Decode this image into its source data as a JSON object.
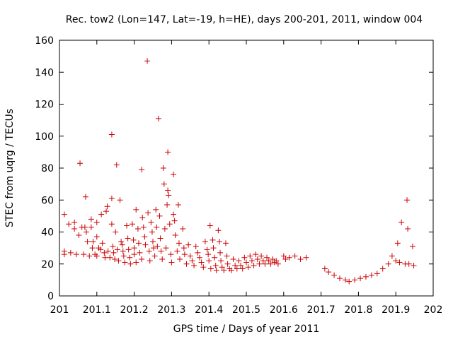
{
  "chart_data": {
    "type": "scatter",
    "title": "Rec. tow2 (Lon=147, Lat=-19, h=HE), days 200-201, 2011, window 004",
    "xlabel": "GPS time / Days of year 2011",
    "ylabel": "STEC from uqrg / TECUs",
    "xlim": [
      201,
      202
    ],
    "ylim": [
      0,
      160
    ],
    "xticks": [
      201,
      201.1,
      201.2,
      201.3,
      201.4,
      201.5,
      201.6,
      201.7,
      201.8,
      201.9,
      202
    ],
    "xtick_labels": [
      "201",
      "201.1",
      "201.2",
      "201.3",
      "201.4",
      "201.5",
      "201.6",
      "201.7",
      "201.8",
      "201.9",
      "202"
    ],
    "yticks": [
      0,
      20,
      40,
      60,
      80,
      100,
      120,
      140,
      160
    ],
    "ytick_labels": [
      "0",
      "20",
      "40",
      "60",
      "80",
      "100",
      "120",
      "140",
      "160"
    ],
    "marker": "+",
    "color": "#cc0000",
    "grid": false,
    "points": [
      [
        201.013,
        51
      ],
      [
        201.013,
        28
      ],
      [
        201.013,
        26
      ],
      [
        201.025,
        45
      ],
      [
        201.03,
        27
      ],
      [
        201.04,
        46
      ],
      [
        201.04,
        42
      ],
      [
        201.045,
        26
      ],
      [
        201.052,
        38
      ],
      [
        201.055,
        83
      ],
      [
        201.06,
        43
      ],
      [
        201.065,
        26
      ],
      [
        201.068,
        43
      ],
      [
        201.07,
        62
      ],
      [
        201.072,
        40
      ],
      [
        201.075,
        34
      ],
      [
        201.08,
        25
      ],
      [
        201.085,
        48
      ],
      [
        201.085,
        43
      ],
      [
        201.088,
        30
      ],
      [
        201.09,
        34
      ],
      [
        201.095,
        26
      ],
      [
        201.1,
        46
      ],
      [
        201.1,
        37
      ],
      [
        201.1,
        25
      ],
      [
        201.105,
        30
      ],
      [
        201.11,
        29
      ],
      [
        201.112,
        51
      ],
      [
        201.115,
        33
      ],
      [
        201.12,
        27
      ],
      [
        201.122,
        24
      ],
      [
        201.125,
        53
      ],
      [
        201.128,
        56
      ],
      [
        201.13,
        28
      ],
      [
        201.135,
        24
      ],
      [
        201.14,
        101
      ],
      [
        201.14,
        61
      ],
      [
        201.14,
        45
      ],
      [
        201.143,
        31
      ],
      [
        201.145,
        27
      ],
      [
        201.148,
        23
      ],
      [
        201.15,
        40
      ],
      [
        201.153,
        82
      ],
      [
        201.155,
        29
      ],
      [
        201.158,
        22
      ],
      [
        201.162,
        60
      ],
      [
        201.165,
        34
      ],
      [
        201.168,
        32
      ],
      [
        201.17,
        28
      ],
      [
        201.172,
        25
      ],
      [
        201.175,
        21
      ],
      [
        201.18,
        44
      ],
      [
        201.183,
        36
      ],
      [
        201.185,
        29
      ],
      [
        201.188,
        24
      ],
      [
        201.19,
        20
      ],
      [
        201.195,
        45
      ],
      [
        201.198,
        35
      ],
      [
        201.2,
        30
      ],
      [
        201.2,
        26
      ],
      [
        201.205,
        21
      ],
      [
        201.205,
        54
      ],
      [
        201.21,
        42
      ],
      [
        201.212,
        33
      ],
      [
        201.215,
        27
      ],
      [
        201.22,
        79
      ],
      [
        201.22,
        23
      ],
      [
        201.222,
        49
      ],
      [
        201.225,
        43
      ],
      [
        201.228,
        37
      ],
      [
        201.23,
        32
      ],
      [
        201.235,
        147
      ],
      [
        201.237,
        52
      ],
      [
        201.24,
        28
      ],
      [
        201.242,
        22
      ],
      [
        201.245,
        46
      ],
      [
        201.248,
        40
      ],
      [
        201.25,
        34
      ],
      [
        201.252,
        30
      ],
      [
        201.255,
        25
      ],
      [
        201.258,
        54
      ],
      [
        201.26,
        43
      ],
      [
        201.262,
        31
      ],
      [
        201.265,
        111
      ],
      [
        201.268,
        50
      ],
      [
        201.27,
        36
      ],
      [
        201.272,
        28
      ],
      [
        201.275,
        23
      ],
      [
        201.278,
        80
      ],
      [
        201.28,
        70
      ],
      [
        201.282,
        42
      ],
      [
        201.285,
        30
      ],
      [
        201.288,
        57
      ],
      [
        201.29,
        66
      ],
      [
        201.29,
        90
      ],
      [
        201.292,
        63
      ],
      [
        201.295,
        45
      ],
      [
        201.298,
        26
      ],
      [
        201.3,
        21
      ],
      [
        201.305,
        76
      ],
      [
        201.305,
        51
      ],
      [
        201.308,
        47
      ],
      [
        201.31,
        38
      ],
      [
        201.315,
        28
      ],
      [
        201.318,
        57
      ],
      [
        201.32,
        33
      ],
      [
        201.322,
        23
      ],
      [
        201.33,
        42
      ],
      [
        201.333,
        30
      ],
      [
        201.335,
        26
      ],
      [
        201.34,
        20
      ],
      [
        201.345,
        32
      ],
      [
        201.35,
        25
      ],
      [
        201.355,
        22
      ],
      [
        201.36,
        19
      ],
      [
        201.365,
        31
      ],
      [
        201.37,
        27
      ],
      [
        201.375,
        24
      ],
      [
        201.38,
        21
      ],
      [
        201.385,
        18
      ],
      [
        201.39,
        34
      ],
      [
        201.395,
        29
      ],
      [
        201.398,
        26
      ],
      [
        201.4,
        22
      ],
      [
        201.403,
        44
      ],
      [
        201.405,
        17
      ],
      [
        201.41,
        35
      ],
      [
        201.412,
        30
      ],
      [
        201.415,
        24
      ],
      [
        201.418,
        19
      ],
      [
        201.42,
        16
      ],
      [
        201.425,
        41
      ],
      [
        201.428,
        34
      ],
      [
        201.43,
        27
      ],
      [
        201.432,
        22
      ],
      [
        201.435,
        18
      ],
      [
        201.44,
        16
      ],
      [
        201.445,
        33
      ],
      [
        201.448,
        25
      ],
      [
        201.45,
        20
      ],
      [
        201.455,
        17
      ],
      [
        201.46,
        16
      ],
      [
        201.465,
        23
      ],
      [
        201.47,
        19
      ],
      [
        201.475,
        17
      ],
      [
        201.48,
        22
      ],
      [
        201.485,
        19
      ],
      [
        201.49,
        17
      ],
      [
        201.495,
        24
      ],
      [
        201.5,
        21
      ],
      [
        201.505,
        18
      ],
      [
        201.51,
        25
      ],
      [
        201.515,
        22
      ],
      [
        201.52,
        19
      ],
      [
        201.525,
        26
      ],
      [
        201.53,
        23
      ],
      [
        201.535,
        20
      ],
      [
        201.54,
        25
      ],
      [
        201.545,
        22
      ],
      [
        201.55,
        20
      ],
      [
        201.555,
        24
      ],
      [
        201.56,
        22
      ],
      [
        201.565,
        20
      ],
      [
        201.57,
        23
      ],
      [
        201.575,
        21
      ],
      [
        201.58,
        22
      ],
      [
        201.585,
        20
      ],
      [
        201.6,
        25
      ],
      [
        201.605,
        23
      ],
      [
        201.615,
        24
      ],
      [
        201.63,
        25
      ],
      [
        201.645,
        23
      ],
      [
        201.66,
        24
      ],
      [
        201.71,
        17
      ],
      [
        201.72,
        15
      ],
      [
        201.735,
        13
      ],
      [
        201.75,
        11
      ],
      [
        201.765,
        10
      ],
      [
        201.775,
        9
      ],
      [
        201.79,
        10
      ],
      [
        201.805,
        11
      ],
      [
        201.82,
        12
      ],
      [
        201.835,
        13
      ],
      [
        201.85,
        14
      ],
      [
        201.865,
        17
      ],
      [
        201.88,
        20
      ],
      [
        201.89,
        25
      ],
      [
        201.9,
        22
      ],
      [
        201.905,
        33
      ],
      [
        201.91,
        21
      ],
      [
        201.915,
        46
      ],
      [
        201.925,
        20
      ],
      [
        201.93,
        60
      ],
      [
        201.932,
        42
      ],
      [
        201.935,
        20
      ],
      [
        201.945,
        31
      ],
      [
        201.948,
        19
      ]
    ]
  }
}
